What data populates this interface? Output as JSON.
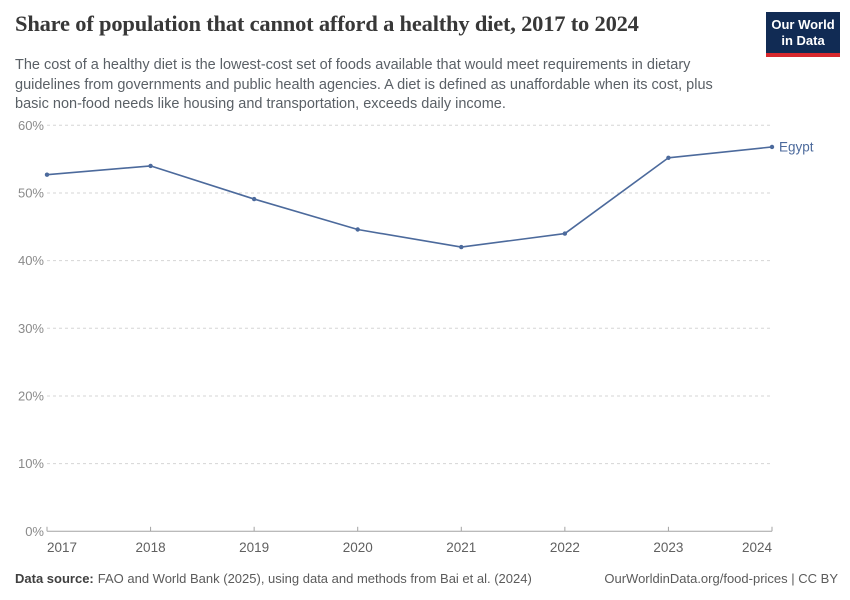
{
  "header": {
    "title": "Share of population that cannot afford a healthy diet, 2017 to 2024",
    "subtitle": "The cost of a healthy diet is the lowest-cost set of foods available that would meet requirements in dietary guidelines from governments and public health agencies. A diet is defined as unaffordable when its cost, plus basic non-food needs like housing and transportation, exceeds daily income.",
    "logo": {
      "line1": "Our World",
      "line2": "in Data",
      "bg_color": "#112b54",
      "stripe_color": "#d8282d"
    }
  },
  "chart_data": {
    "type": "line",
    "title": "Share of population that cannot afford a healthy diet, 2017 to 2024",
    "x": [
      "2017",
      "2018",
      "2019",
      "2020",
      "2021",
      "2022",
      "2023",
      "2024"
    ],
    "series": [
      {
        "name": "Egypt",
        "color": "#4c6a9c",
        "values": [
          52.7,
          54.0,
          49.1,
          44.6,
          42.0,
          44.0,
          55.2,
          56.8
        ]
      }
    ],
    "ylim": [
      0,
      60
    ],
    "yticks": [
      0,
      10,
      20,
      30,
      40,
      50,
      60
    ],
    "ytick_suffix": "%",
    "grid": true,
    "grid_color": "#d5d5d5",
    "axis_color": "#a3a3a3",
    "ytick_label_color": "#8a8a8a",
    "xtick_label_color": "#606060",
    "legend_position": "end-of-line"
  },
  "footer": {
    "source_label": "Data source:",
    "source_text": "FAO and World Bank (2025), using data and methods from Bai et al. (2024)",
    "link_text": "OurWorldinData.org/food-prices",
    "license_text": " | CC BY"
  }
}
